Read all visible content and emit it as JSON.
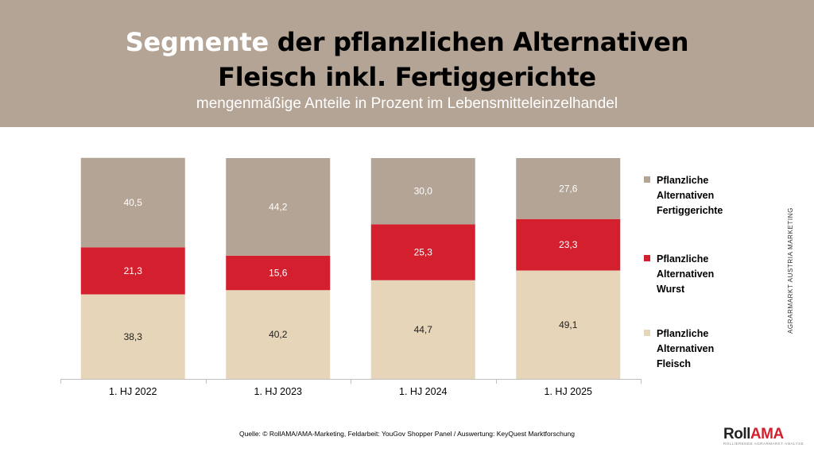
{
  "header": {
    "title_accent": "Segmente",
    "title_rest": " der pflanzlichen Alternativen",
    "title_line2": "Fleisch inkl. Fertiggerichte",
    "subtitle": "mengenmäßige Anteile in Prozent im Lebensmitteleinzelhandel"
  },
  "colors": {
    "header_bg": "#b4a495",
    "fertiggerichte": "#b4a495",
    "wurst": "#d31f2e",
    "fleisch": "#e6d5b9"
  },
  "chart_data": {
    "type": "bar",
    "stacked": true,
    "categories": [
      "1. HJ 2022",
      "1. HJ 2023",
      "1. HJ 2024",
      "1. HJ 2025"
    ],
    "series": [
      {
        "name": "Pflanzliche Alternativen Fleisch",
        "values": [
          "38,3",
          "40,2",
          "44,7",
          "49,1"
        ],
        "color": "#e6d5b9",
        "label_color": "#222222"
      },
      {
        "name": "Pflanzliche Alternativen Wurst",
        "values": [
          "21,3",
          "15,6",
          "25,3",
          "23,3"
        ],
        "color": "#d31f2e",
        "label_color": "#ffffff"
      },
      {
        "name": "Pflanzliche Alternativen Fertiggerichte",
        "values": [
          "40,5",
          "44,2",
          "30,0",
          "27,6"
        ],
        "color": "#b4a495",
        "label_color": "#ffffff"
      }
    ],
    "ylim": [
      0,
      100
    ],
    "legend_position": "right"
  },
  "legend": [
    {
      "lines": [
        "Pflanzliche",
        "Alternativen",
        "Fertiggerichte"
      ],
      "color": "#b4a495"
    },
    {
      "lines": [
        "Pflanzliche",
        "Alternativen",
        "Wurst"
      ],
      "color": "#d31f2e"
    },
    {
      "lines": [
        "Pflanzliche",
        "Alternativen",
        "Fleisch"
      ],
      "color": "#e6d5b9"
    }
  ],
  "side_label": "AGRARMARKT AUSTRIA MARKETING",
  "source": "Quelle: © RollAMA/AMA-Marketing, Feldarbeit: YouGov Shopper Panel / Auswertung: KeyQuest Marktforschung",
  "logo": {
    "part1": "Roll",
    "part2": "AMA",
    "tagline": "ROLLIERENDE AGRARMARKT-ANALYSE"
  }
}
